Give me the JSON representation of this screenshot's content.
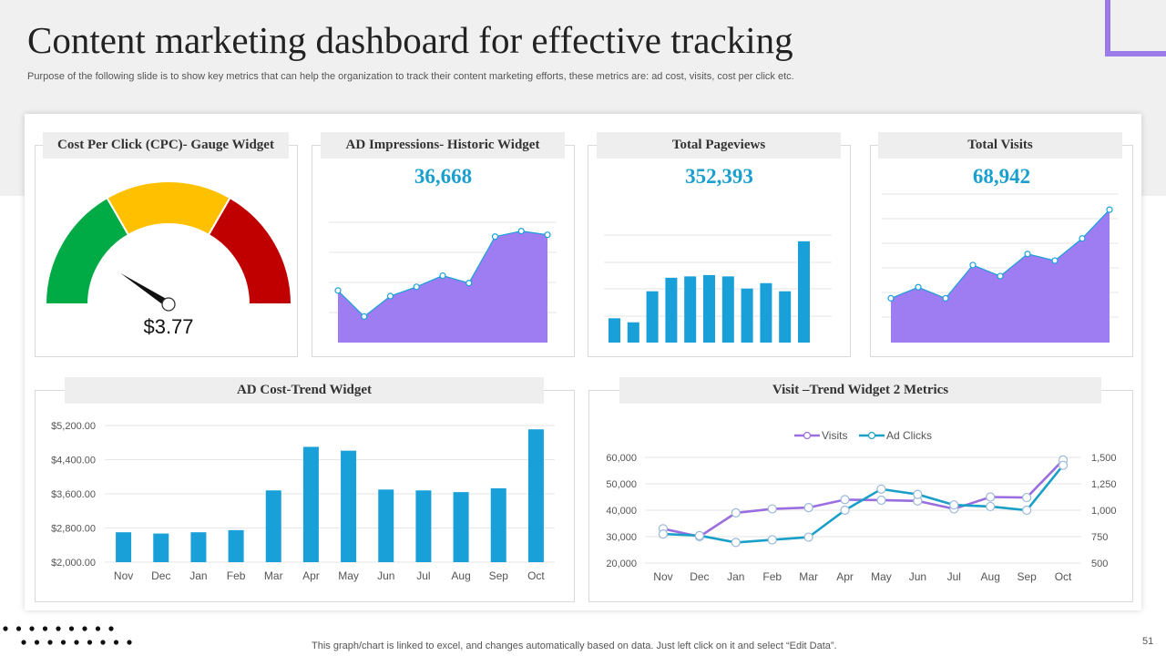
{
  "page": {
    "title": "Content marketing dashboard for effective tracking",
    "subtitle": "Purpose of the following slide is to show key metrics that can help the organization to track their content marketing efforts, these metrics are: ad cost, visits, cost per click etc.",
    "footnote": "This graph/chart is linked to excel,  and changes automatically based on data. Just left click on it and select “Edit Data”.",
    "page_number": "51"
  },
  "colors": {
    "accent_purple": "#9b7bea",
    "area_purple": "#9e7cf2",
    "bar_blue": "#1aa0d8",
    "number_blue": "#1a9fcf",
    "gauge_green": "#00aa44",
    "gauge_yellow": "#ffc000",
    "gauge_red": "#c00000"
  },
  "widgets": {
    "cpc": {
      "header": "Cost Per Click (CPC)-  Gauge Widget",
      "value_label": "$3.77"
    },
    "impressions": {
      "header": "AD Impressions- Historic Widget",
      "total": "36,668"
    },
    "pageviews": {
      "header": "Total Pageviews",
      "total": "352,393"
    },
    "visits": {
      "header": "Total Visits",
      "total": "68,942"
    },
    "ad_cost": {
      "header": "AD Cost-Trend Widget"
    },
    "visit_trend": {
      "header": "Visit –Trend Widget 2 Metrics"
    }
  },
  "chart_data": [
    {
      "id": "cpc-gauge",
      "type": "gauge",
      "title": "Cost Per Click (CPC)-  Gauge Widget",
      "value": 3.77,
      "value_label": "$3.77",
      "zones": [
        "green",
        "yellow",
        "red"
      ],
      "needle_angle_deg": 33
    },
    {
      "id": "impressions",
      "type": "area",
      "title": "AD Impressions- Historic Widget",
      "values": [
        28,
        14,
        25,
        30,
        36,
        32,
        57,
        60,
        58
      ],
      "ylim": [
        0,
        75
      ]
    },
    {
      "id": "pageviews",
      "type": "bar",
      "title": "Total Pageviews",
      "values": [
        18,
        15,
        38,
        48,
        49,
        50,
        49,
        40,
        44,
        38,
        75
      ],
      "ylim": [
        0,
        85
      ]
    },
    {
      "id": "visits",
      "type": "area",
      "title": "Total Visits",
      "values": [
        20,
        25,
        20,
        35,
        30,
        40,
        37,
        47,
        60
      ],
      "ylim": [
        0,
        65
      ]
    },
    {
      "id": "ad-cost",
      "type": "bar",
      "title": "AD Cost-Trend Widget",
      "categories": [
        "Nov",
        "Dec",
        "Jan",
        "Feb",
        "Mar",
        "Apr",
        "May",
        "Jun",
        "Jul",
        "Aug",
        "Sep",
        "Oct"
      ],
      "values": [
        2700,
        2670,
        2700,
        2750,
        3680,
        4700,
        4610,
        3700,
        3680,
        3640,
        3730,
        5110
      ],
      "yticks": [
        2000,
        2800,
        3600,
        4400,
        5200
      ],
      "ytick_labels": [
        "$2,000.00",
        "$2,800.00",
        "$3,600.00",
        "$4,400.00",
        "$5,200.00"
      ],
      "ylim": [
        2000,
        5200
      ]
    },
    {
      "id": "visit-trend",
      "type": "line",
      "title": "Visit –Trend Widget 2 Metrics",
      "categories": [
        "Nov",
        "Dec",
        "Jan",
        "Feb",
        "Mar",
        "Apr",
        "May",
        "Jun",
        "Jul",
        "Aug",
        "Sep",
        "Oct"
      ],
      "series": [
        {
          "name": "Visits",
          "axis": "left",
          "color": "#9b6ee0",
          "values": [
            33000,
            30000,
            39000,
            40500,
            41000,
            44000,
            43800,
            43500,
            40500,
            45000,
            44800,
            59000
          ]
        },
        {
          "name": "Ad Clicks",
          "axis": "right",
          "color": "#1aa0c8",
          "values": [
            775,
            760,
            695,
            720,
            745,
            1000,
            1200,
            1150,
            1050,
            1035,
            1000,
            1425
          ]
        }
      ],
      "yticks_left": [
        20000,
        30000,
        40000,
        50000,
        60000
      ],
      "ytick_labels_left": [
        "20,000",
        "30,000",
        "40,000",
        "50,000",
        "60,000"
      ],
      "ylim_left": [
        20000,
        60000
      ],
      "yticks_right": [
        500,
        750,
        1000,
        1250,
        1500
      ],
      "ytick_labels_right": [
        "500",
        "750",
        "1,000",
        "1,250",
        "1,500"
      ],
      "ylim_right": [
        500,
        1500
      ],
      "legend": "top-center"
    }
  ]
}
